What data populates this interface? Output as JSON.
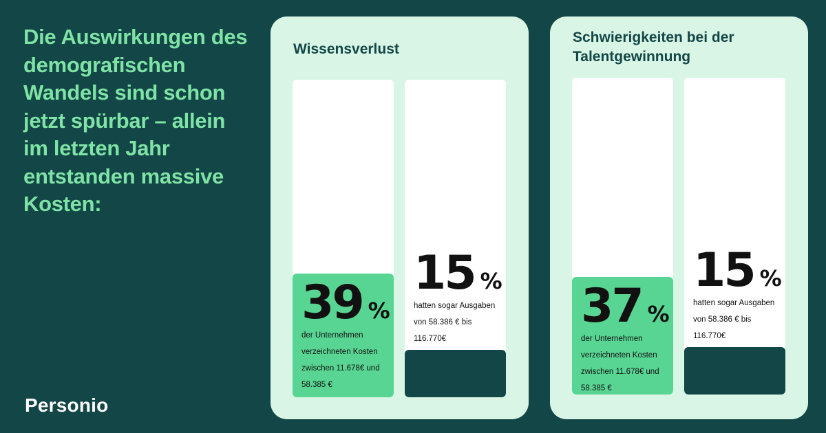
{
  "headline": "Die Auswirkungen des demografischen Wandels sind schon jetzt spürbar – allein im letzten Jahr entstanden massive Kosten:",
  "brand": {
    "logo_text": "Personio"
  },
  "colors": {
    "background": "#134646",
    "accent_green": "#58d593",
    "headline_green": "#7fe3a6",
    "panel": "#d8f5e5",
    "dark_fill": "#134646"
  },
  "chart_data": [
    {
      "type": "bar",
      "title": "Wissensverlust",
      "ylim": [
        0,
        100
      ],
      "bars": [
        {
          "value": 39,
          "unit": "%",
          "description": "der Unternehmen verzeichneten Kosten zwischen 11.678€ und 58.385 €",
          "color": "#58d593"
        },
        {
          "value": 15,
          "unit": "%",
          "description": "hatten sogar Ausgaben von 58.386 € bis 116.770€",
          "color": "#134646"
        }
      ]
    },
    {
      "type": "bar",
      "title": "Schwierigkeiten bei der Talentgewinnung",
      "ylim": [
        0,
        100
      ],
      "bars": [
        {
          "value": 37,
          "unit": "%",
          "description": "der Unternehmen verzeichneten Kosten zwischen 11.678€ und 58.385 €",
          "color": "#58d593"
        },
        {
          "value": 15,
          "unit": "%",
          "description": "hatten sogar Ausgaben von 58.386 € bis 116.770€",
          "color": "#134646"
        }
      ]
    }
  ]
}
